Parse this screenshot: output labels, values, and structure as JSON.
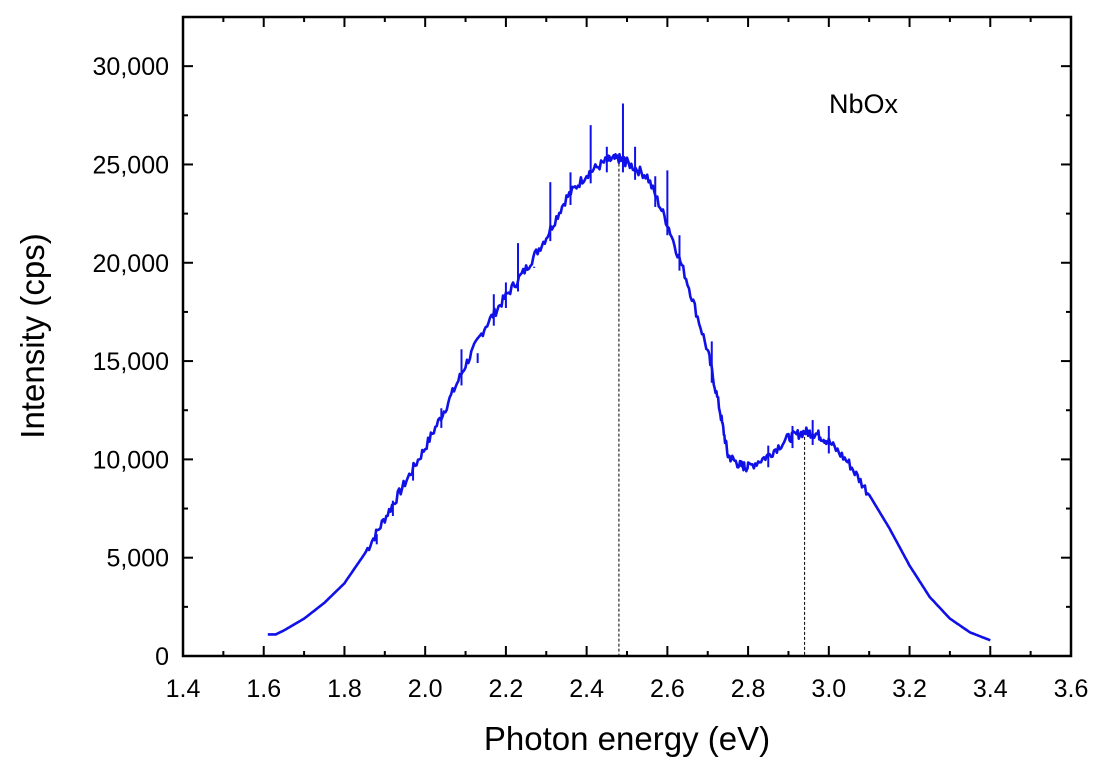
{
  "chart_data": {
    "type": "line",
    "title": "",
    "xlabel": "Photon energy (eV)",
    "ylabel": "Intensity (cps)",
    "xlim": [
      1.4,
      3.6
    ],
    "ylim": [
      0,
      32500
    ],
    "x_ticks": [
      1.4,
      1.6,
      1.8,
      2.0,
      2.2,
      2.4,
      2.6,
      2.8,
      3.0,
      3.2,
      3.4,
      3.6
    ],
    "x_tick_labels": [
      "1.4",
      "1.6",
      "1.8",
      "2.0",
      "2.2",
      "2.4",
      "2.6",
      "2.8",
      "3.0",
      "3.2",
      "3.4",
      "3.6"
    ],
    "y_ticks": [
      0,
      5000,
      10000,
      15000,
      20000,
      25000,
      30000
    ],
    "y_tick_labels": [
      "0",
      "5,000",
      "10,000",
      "15,000",
      "20,000",
      "25,000",
      "30,000"
    ],
    "grid": false,
    "annotation": "NbOx",
    "series": [
      {
        "name": "NbOx",
        "color": "#1010e8",
        "x": [
          1.61,
          1.63,
          1.65,
          1.7,
          1.75,
          1.8,
          1.85,
          1.9,
          1.95,
          2.0,
          2.05,
          2.1,
          2.15,
          2.2,
          2.25,
          2.3,
          2.35,
          2.4,
          2.45,
          2.48,
          2.5,
          2.55,
          2.6,
          2.65,
          2.7,
          2.73,
          2.75,
          2.78,
          2.8,
          2.85,
          2.9,
          2.94,
          2.97,
          3.0,
          3.05,
          3.1,
          3.15,
          3.2,
          3.25,
          3.3,
          3.35,
          3.4
        ],
        "values": [
          1100,
          1100,
          1300,
          1900,
          2700,
          3700,
          5200,
          7000,
          8800,
          10600,
          12600,
          14800,
          16800,
          18300,
          19700,
          21300,
          23300,
          24500,
          25200,
          25300,
          25100,
          24400,
          22000,
          19000,
          15500,
          12500,
          10200,
          9700,
          9600,
          10200,
          11100,
          11400,
          11300,
          10900,
          9800,
          8200,
          6500,
          4600,
          3000,
          1900,
          1200,
          800
        ]
      }
    ],
    "spikes": [
      {
        "x": 1.88,
        "value": 6200
      },
      {
        "x": 1.92,
        "value": 7900
      },
      {
        "x": 1.97,
        "value": 9800
      },
      {
        "x": 2.04,
        "value": 12600
      },
      {
        "x": 2.09,
        "value": 15600
      },
      {
        "x": 2.13,
        "value": 14900
      },
      {
        "x": 2.17,
        "value": 18400
      },
      {
        "x": 2.2,
        "value": 19000
      },
      {
        "x": 2.23,
        "value": 21000
      },
      {
        "x": 2.27,
        "value": 19800
      },
      {
        "x": 2.31,
        "value": 24100
      },
      {
        "x": 2.36,
        "value": 24600
      },
      {
        "x": 2.41,
        "value": 27000
      },
      {
        "x": 2.45,
        "value": 25900
      },
      {
        "x": 2.49,
        "value": 28100
      },
      {
        "x": 2.52,
        "value": 25900
      },
      {
        "x": 2.57,
        "value": 24400
      },
      {
        "x": 2.6,
        "value": 24700
      },
      {
        "x": 2.63,
        "value": 21400
      },
      {
        "x": 2.71,
        "value": 16000
      },
      {
        "x": 2.85,
        "value": 10700
      },
      {
        "x": 2.91,
        "value": 11700
      },
      {
        "x": 2.96,
        "value": 12000
      },
      {
        "x": 3.0,
        "value": 11700
      }
    ],
    "reference_lines": [
      {
        "x": 2.48,
        "value": 25300
      },
      {
        "x": 2.94,
        "value": 11400
      }
    ]
  }
}
